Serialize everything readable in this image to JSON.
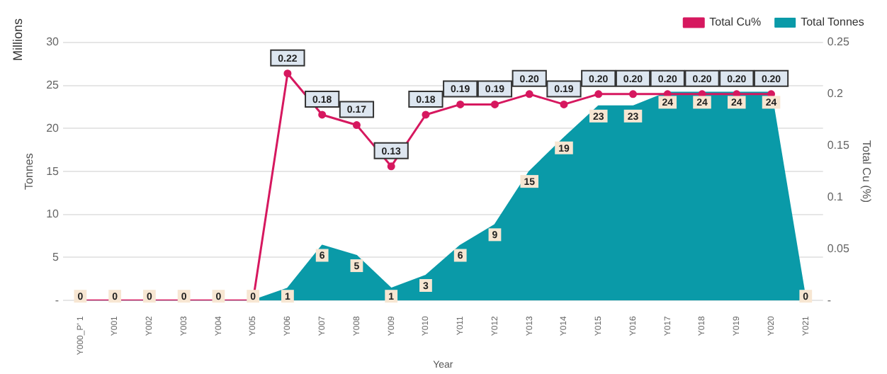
{
  "chart_data": {
    "type": "area",
    "xlabel": "Year",
    "ylabel": "Tonnes",
    "y2label": "Total Cu (%)",
    "annotations": [
      "Millions"
    ],
    "categories": [
      "Y000_P' 1",
      "Y001",
      "Y002",
      "Y003",
      "Y004",
      "Y005",
      "Y006",
      "Y007",
      "Y008",
      "Y009",
      "Y010",
      "Y011",
      "Y012",
      "Y013",
      "Y014",
      "Y015",
      "Y016",
      "Y017",
      "Y018",
      "Y019",
      "Y020",
      "Y021"
    ],
    "series": [
      {
        "name": "Total Tonnes",
        "color": "#0a9aa8",
        "values": [
          0,
          0,
          0,
          0,
          0,
          0,
          1.4,
          6.4,
          5.2,
          1.4,
          2.9,
          6.4,
          8.8,
          15,
          18.9,
          22.6,
          22.6,
          24.2,
          24.2,
          24.2,
          24.2,
          0
        ],
        "value_labels": [
          "0",
          "0",
          "0",
          "0",
          "0",
          "0",
          "1",
          "6",
          "5",
          "1",
          "3",
          "6",
          "9",
          "15",
          "19",
          "23",
          "23",
          "24",
          "24",
          "24",
          "24",
          "0"
        ]
      },
      {
        "name": "Total Cu%",
        "type": "line",
        "axis": "y2",
        "color": "#d6185f",
        "marker": "circle",
        "values": [
          0,
          0,
          0,
          0,
          0,
          0,
          0.22,
          0.18,
          0.17,
          0.13,
          0.18,
          0.19,
          0.19,
          0.2,
          0.19,
          0.2,
          0.2,
          0.2,
          0.2,
          0.2,
          0.2,
          null
        ],
        "value_labels": [
          null,
          null,
          null,
          null,
          null,
          null,
          "0.22",
          "0.18",
          "0.17",
          "0.13",
          "0.18",
          "0.19",
          "0.19",
          "0.20",
          "0.19",
          "0.20",
          "0.20",
          "0.20",
          "0.20",
          "0.20",
          "0.20",
          null
        ]
      }
    ],
    "ylim": [
      0,
      30
    ],
    "yticks": [
      {
        "value": 0,
        "label": "-"
      },
      5,
      10,
      15,
      20,
      25,
      30
    ],
    "y2lim": [
      0,
      0.25
    ],
    "y2ticks": [
      {
        "value": 0,
        "label": "-"
      },
      0.05,
      0.1,
      0.15,
      0.2,
      0.25
    ],
    "grid": "y",
    "legend": "top right"
  }
}
